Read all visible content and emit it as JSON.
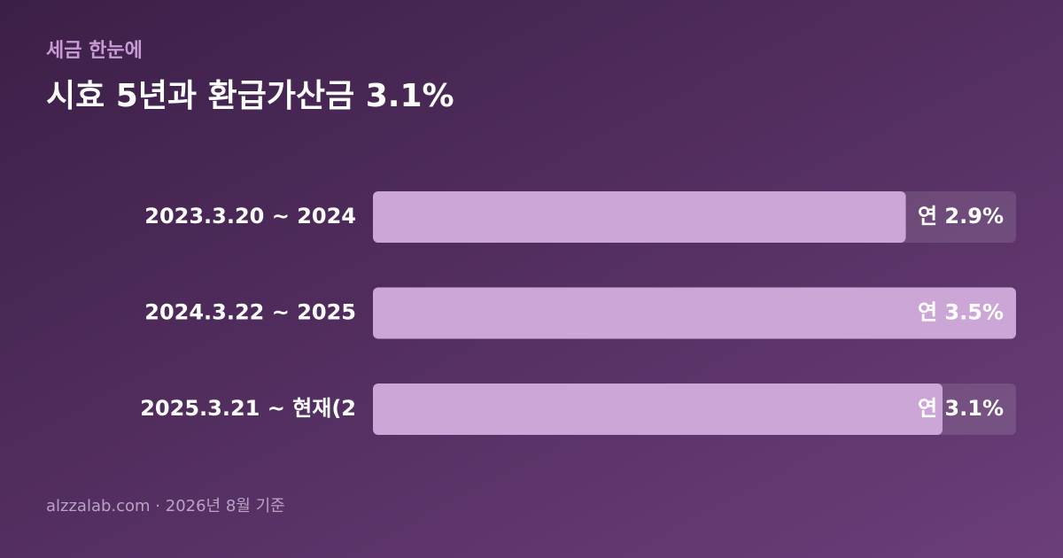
{
  "chart_data": {
    "type": "bar",
    "orientation": "horizontal",
    "kicker": "세금 한눈에",
    "title": "시효 5년과 환급가산금 3.1%",
    "categories": [
      "2023.3.20 ~ 2024",
      "2024.3.22 ~ 2025",
      "2025.3.21 ~ 현재(2"
    ],
    "values": [
      2.9,
      3.5,
      3.1
    ],
    "value_labels": [
      "연 2.9%",
      "연 3.5%",
      "연 3.1%"
    ],
    "xlim": [
      0,
      3.5
    ],
    "color": "#cda6d8",
    "footer": "alzzalab.com · 2026년 8월 기준"
  }
}
